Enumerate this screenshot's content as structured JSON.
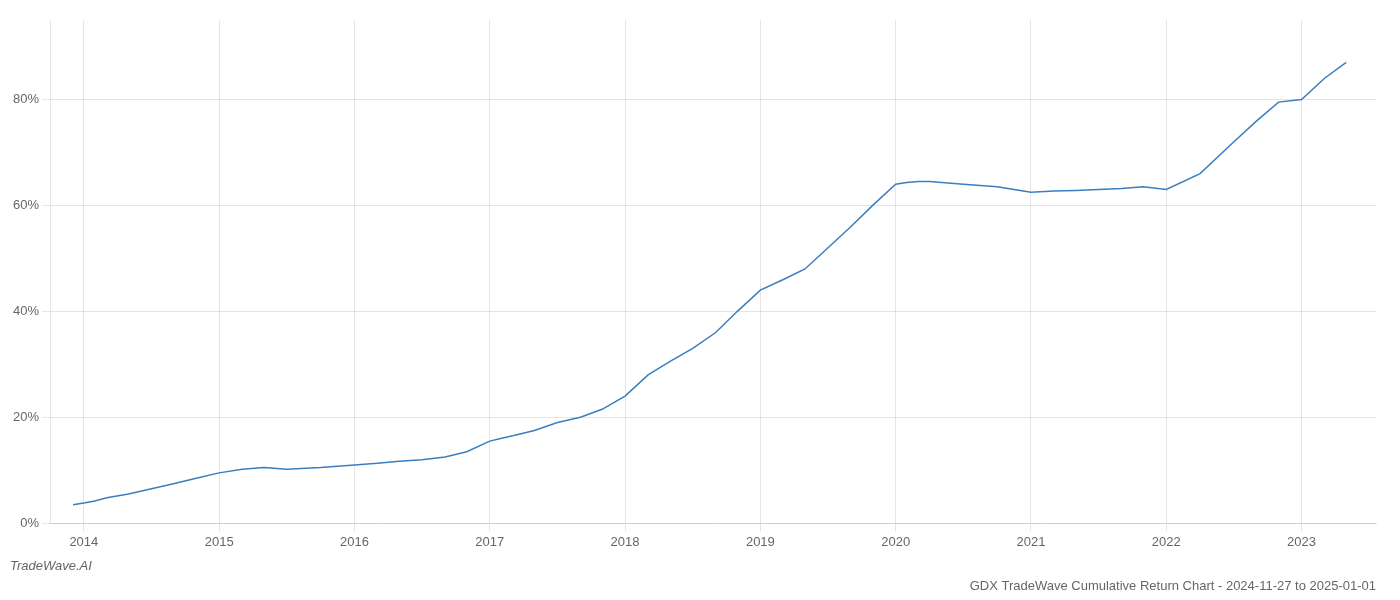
{
  "chart_data": {
    "type": "line",
    "title": "GDX TradeWave Cumulative Return Chart - 2024-11-27 to 2025-01-01",
    "annotations": [
      "TradeWave.AI"
    ],
    "color": "#3a7ebf",
    "grid": true,
    "x": [
      2013.92,
      2014.0,
      2014.08,
      2014.17,
      2014.33,
      2014.5,
      2014.67,
      2014.83,
      2015.0,
      2015.17,
      2015.33,
      2015.5,
      2015.75,
      2016.0,
      2016.17,
      2016.33,
      2016.5,
      2016.67,
      2016.83,
      2017.0,
      2017.08,
      2017.17,
      2017.33,
      2017.5,
      2017.67,
      2017.83,
      2018.0,
      2018.17,
      2018.33,
      2018.5,
      2018.67,
      2018.83,
      2019.0,
      2019.17,
      2019.33,
      2019.5,
      2019.67,
      2019.83,
      2020.0,
      2020.08,
      2020.17,
      2020.25,
      2020.5,
      2020.75,
      2021.0,
      2021.17,
      2021.33,
      2021.5,
      2021.67,
      2021.83,
      2022.0,
      2022.25,
      2022.5,
      2022.67,
      2022.83,
      2023.0,
      2023.17,
      2023.33
    ],
    "values": [
      3.5,
      3.8,
      4.2,
      4.8,
      5.5,
      6.5,
      7.5,
      8.5,
      9.5,
      10.2,
      10.5,
      10.2,
      10.5,
      11.0,
      11.3,
      11.7,
      12.0,
      12.5,
      13.5,
      15.5,
      16.0,
      16.5,
      17.5,
      19.0,
      20.0,
      21.5,
      24.0,
      28.0,
      30.5,
      33.0,
      36.0,
      40.0,
      44.0,
      46.0,
      48.0,
      52.0,
      56.0,
      60.0,
      64.0,
      64.3,
      64.5,
      64.5,
      64.0,
      63.5,
      62.5,
      62.7,
      62.8,
      63.0,
      63.2,
      63.5,
      63.0,
      66.0,
      72.0,
      76.0,
      79.5,
      80.0,
      84.0,
      87.0
    ],
    "xlim": [
      2013.75,
      2023.55
    ],
    "ylim": [
      0,
      95
    ],
    "xticks": [
      2014,
      2015,
      2016,
      2017,
      2018,
      2019,
      2020,
      2021,
      2022,
      2023
    ],
    "yticks": [
      {
        "value": 0,
        "label": "0%"
      },
      {
        "value": 20,
        "label": "20%"
      },
      {
        "value": 40,
        "label": "40%"
      },
      {
        "value": 60,
        "label": "60%"
      },
      {
        "value": 80,
        "label": "80%"
      }
    ]
  }
}
